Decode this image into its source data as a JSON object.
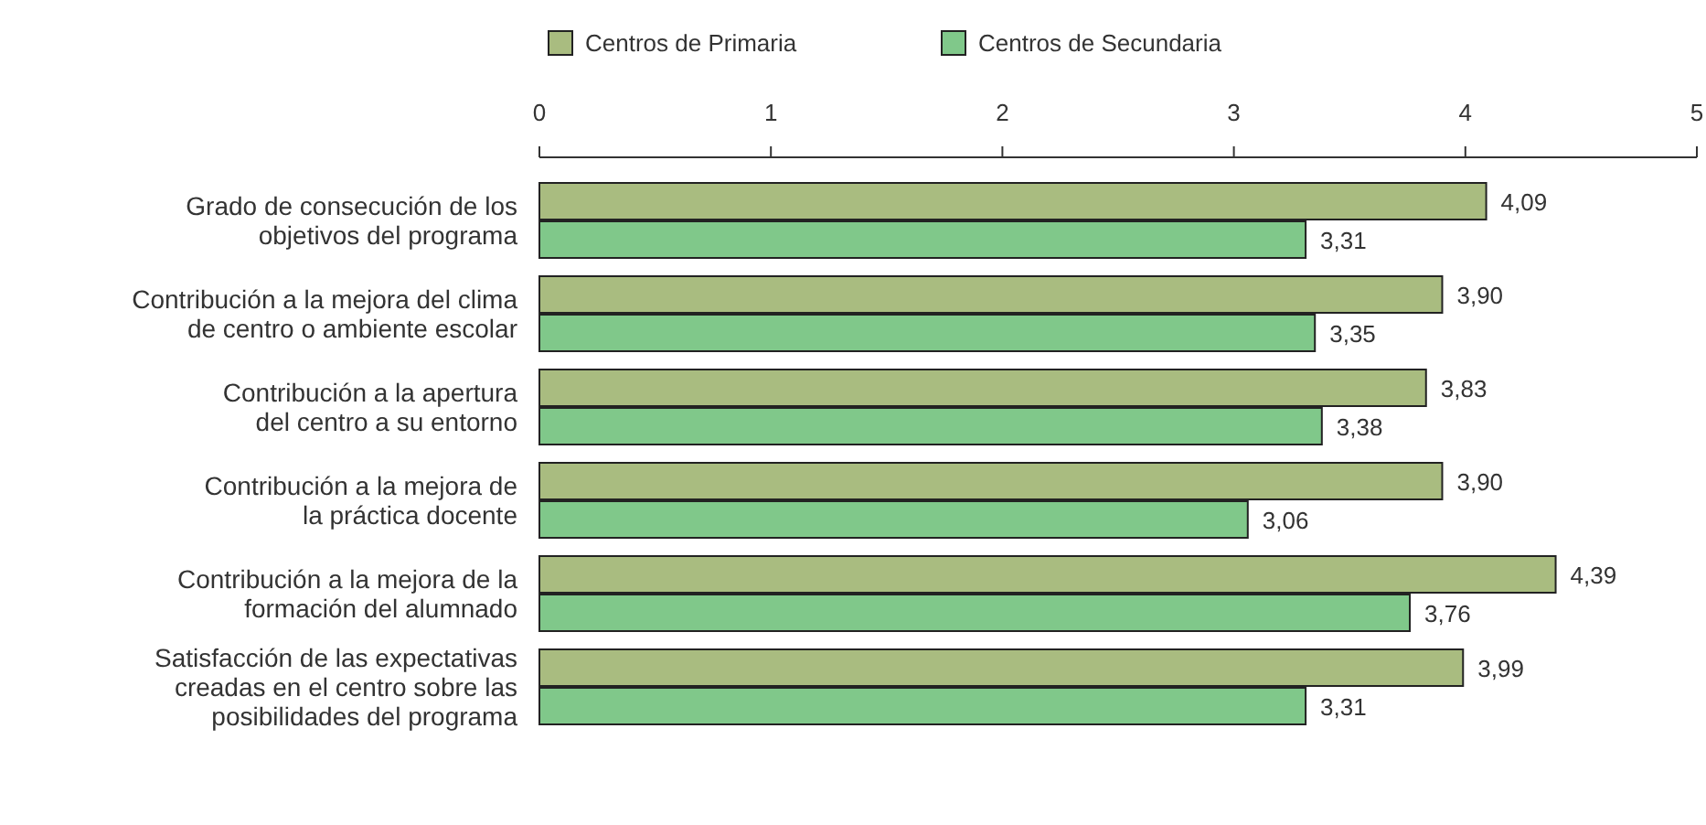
{
  "chart_data": {
    "type": "bar",
    "orientation": "horizontal",
    "categories": [
      "Grado de consecución de los\nobjetivos del programa",
      "Contribución a la mejora del clima\nde centro o ambiente escolar",
      "Contribución a la apertura\ndel centro a su entorno",
      "Contribución a la mejora de\nla práctica docente",
      "Contribución a la mejora de la\nformación del alumnado",
      "Satisfacción de las expectativas\ncreadas en el centro sobre las\nposibilidades del programa"
    ],
    "series": [
      {
        "name": "Centros de Primaria",
        "color": "#a9bc80",
        "values": [
          4.09,
          3.9,
          3.83,
          3.9,
          4.39,
          3.99
        ],
        "value_labels": [
          "4,09",
          "3,90",
          "3,83",
          "3,90",
          "4,39",
          "3,99"
        ]
      },
      {
        "name": "Centros de Secundaria",
        "color": "#80c88a",
        "values": [
          3.31,
          3.35,
          3.38,
          3.06,
          3.76,
          3.31
        ],
        "value_labels": [
          "3,31",
          "3,35",
          "3,38",
          "3,06",
          "3,76",
          "3,31"
        ]
      }
    ],
    "xlim": [
      0,
      5
    ],
    "xticks": [
      0,
      1,
      2,
      3,
      4,
      5
    ],
    "legend": "top",
    "grid": false
  }
}
